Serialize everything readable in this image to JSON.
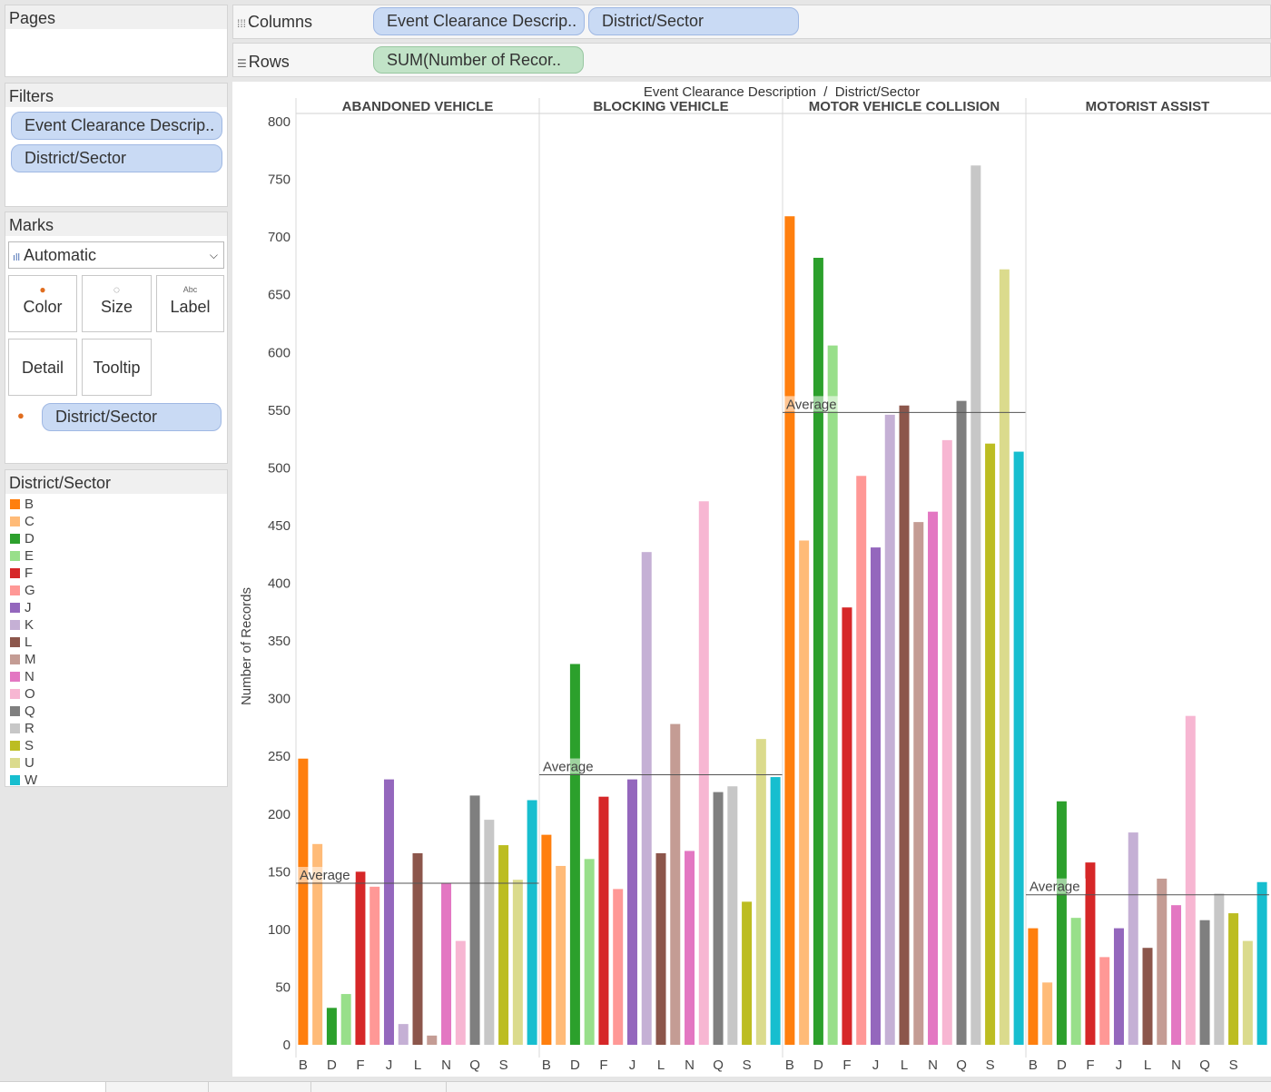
{
  "shelves": {
    "pages_label": "Pages",
    "columns_label": "Columns",
    "rows_label": "Rows",
    "columns_pills": [
      "Event Clearance Descrip..",
      "District/Sector"
    ],
    "rows_pills": [
      "SUM(Number of Recor.."
    ]
  },
  "filters": {
    "title": "Filters",
    "pills": [
      "Event Clearance Descrip..",
      "District/Sector"
    ]
  },
  "marks": {
    "title": "Marks",
    "mark_type": "Automatic",
    "buttons": {
      "color": "Color",
      "size": "Size",
      "label": "Label",
      "detail": "Detail",
      "tooltip": "Tooltip"
    },
    "color_pill": "District/Sector"
  },
  "legend": {
    "title": "District/Sector",
    "items": [
      {
        "name": "B",
        "color": "#ff7f0e"
      },
      {
        "name": "C",
        "color": "#ffbb78"
      },
      {
        "name": "D",
        "color": "#2ca02c"
      },
      {
        "name": "E",
        "color": "#98df8a"
      },
      {
        "name": "F",
        "color": "#d62728"
      },
      {
        "name": "G",
        "color": "#ff9896"
      },
      {
        "name": "J",
        "color": "#9467bd"
      },
      {
        "name": "K",
        "color": "#c5b0d5"
      },
      {
        "name": "L",
        "color": "#8c564b"
      },
      {
        "name": "M",
        "color": "#c49c94"
      },
      {
        "name": "N",
        "color": "#e377c2"
      },
      {
        "name": "O",
        "color": "#f7b6d2"
      },
      {
        "name": "Q",
        "color": "#7f7f7f"
      },
      {
        "name": "R",
        "color": "#c7c7c7"
      },
      {
        "name": "S",
        "color": "#bcbd22"
      },
      {
        "name": "U",
        "color": "#dbdb8d"
      },
      {
        "name": "W",
        "color": "#17becf"
      }
    ]
  },
  "chart_data": {
    "type": "bar",
    "title": "Event Clearance Description  /  District/Sector",
    "ylabel": "Number of Records",
    "ylim": [
      0,
      800
    ],
    "yticks": [
      0,
      50,
      100,
      150,
      200,
      250,
      300,
      350,
      400,
      450,
      500,
      550,
      600,
      650,
      700,
      750,
      800
    ],
    "categories": [
      "B",
      "C",
      "D",
      "E",
      "F",
      "G",
      "J",
      "K",
      "L",
      "M",
      "N",
      "O",
      "Q",
      "R",
      "S",
      "U",
      "W"
    ],
    "x_tick_labels": [
      "B",
      "D",
      "F",
      "J",
      "L",
      "N",
      "Q",
      "S"
    ],
    "reference_line_label": "Average",
    "panels": [
      {
        "name": "ABANDONED VEHICLE",
        "average": 140,
        "values": [
          248,
          174,
          32,
          44,
          150,
          137,
          230,
          18,
          166,
          8,
          140,
          90,
          216,
          195,
          173,
          143,
          212
        ]
      },
      {
        "name": "BLOCKING VEHICLE",
        "average": 234,
        "values": [
          182,
          155,
          330,
          161,
          215,
          135,
          230,
          427,
          166,
          278,
          168,
          471,
          219,
          224,
          124,
          265,
          232
        ]
      },
      {
        "name": "MOTOR VEHICLE COLLISION",
        "average": 548,
        "values": [
          718,
          437,
          682,
          606,
          379,
          493,
          431,
          546,
          554,
          453,
          462,
          524,
          558,
          762,
          521,
          672,
          514
        ]
      },
      {
        "name": "MOTORIST ASSIST",
        "average": 130,
        "values": [
          101,
          54,
          211,
          110,
          158,
          76,
          101,
          184,
          84,
          144,
          121,
          285,
          108,
          131,
          114,
          90,
          141
        ]
      }
    ],
    "grid": false,
    "legend_position": "left"
  }
}
